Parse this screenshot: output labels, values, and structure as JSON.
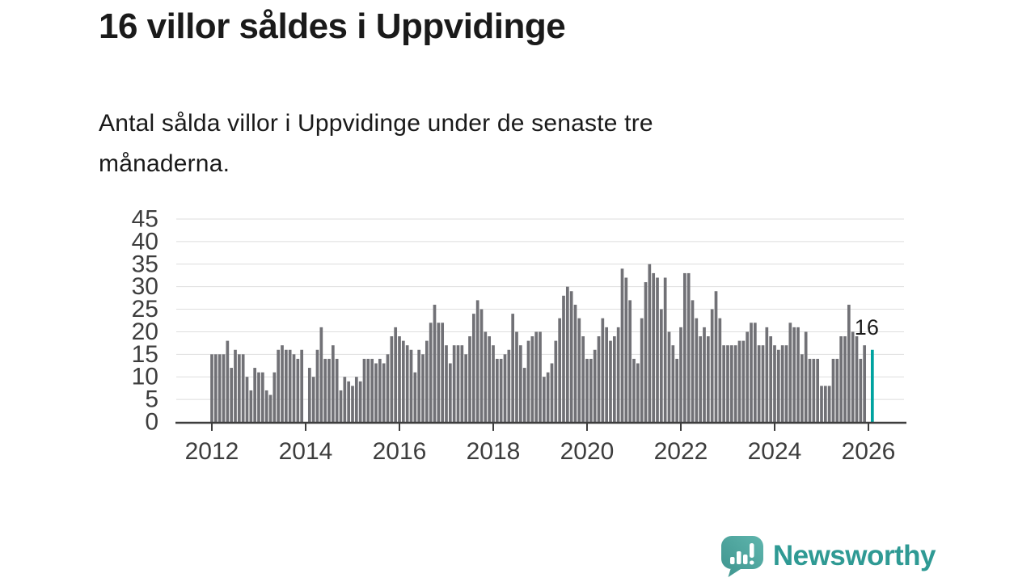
{
  "header": {
    "title": "16 villor såldes i Uppvidinge",
    "subtitle": "Antal sålda villor i Uppvidinge under de senaste tre månaderna.",
    "subtitle_lines": [
      "Antal sålda villor i Uppvidinge under de senaste tre",
      "månaderna."
    ]
  },
  "branding": {
    "name": "Newsworthy",
    "icon": "speech-bubble-bar-chart-exclamation",
    "text_color": "#2f9a94",
    "bubble_color_dark": "#3e948e",
    "bubble_color_light": "#5fb5ad"
  },
  "chart_data": {
    "type": "bar",
    "title": "16 villor såldes i Uppvidinge",
    "subtitle": "Antal sålda villor i Uppvidinge under de senaste tre månaderna.",
    "frequency": "monthly",
    "start_year": 2012,
    "ylim": [
      0,
      45
    ],
    "y_ticks": [
      0,
      5,
      10,
      15,
      20,
      25,
      30,
      35,
      40,
      45
    ],
    "grid": true,
    "legend": "none",
    "x_ticks": [
      {
        "label": "2012",
        "index": 0
      },
      {
        "label": "2014",
        "index": 24
      },
      {
        "label": "2016",
        "index": 48
      },
      {
        "label": "2018",
        "index": 72
      },
      {
        "label": "2020",
        "index": 96
      },
      {
        "label": "2022",
        "index": 120
      },
      {
        "label": "2024",
        "index": 144
      },
      {
        "label": "2026",
        "index": 168
      }
    ],
    "values": [
      15,
      15,
      15,
      15,
      18,
      12,
      16,
      15,
      15,
      10,
      7,
      12,
      11,
      11,
      7,
      6,
      11,
      16,
      17,
      16,
      16,
      15,
      14,
      16,
      null,
      12,
      10,
      16,
      21,
      14,
      14,
      17,
      14,
      7,
      10,
      9,
      8,
      10,
      9,
      14,
      14,
      14,
      13,
      14,
      13,
      15,
      19,
      21,
      19,
      18,
      17,
      16,
      11,
      16,
      15,
      18,
      22,
      26,
      22,
      22,
      17,
      13,
      17,
      17,
      17,
      15,
      19,
      24,
      27,
      25,
      20,
      19,
      17,
      14,
      14,
      15,
      16,
      24,
      20,
      17,
      12,
      18,
      19,
      20,
      20,
      10,
      11,
      13,
      18,
      23,
      28,
      30,
      29,
      26,
      23,
      19,
      14,
      14,
      16,
      19,
      23,
      21,
      18,
      19,
      21,
      34,
      32,
      27,
      14,
      13,
      23,
      31,
      35,
      33,
      32,
      25,
      32,
      20,
      17,
      14,
      21,
      33,
      33,
      27,
      23,
      19,
      21,
      19,
      25,
      29,
      23,
      17,
      17,
      17,
      17,
      18,
      18,
      20,
      22,
      22,
      17,
      17,
      21,
      19,
      17,
      16,
      17,
      17,
      22,
      21,
      21,
      15,
      20,
      14,
      14,
      14,
      8,
      8,
      8,
      14,
      14,
      19,
      19,
      26,
      20,
      19,
      14,
      17,
      null,
      16
    ],
    "highlight_index": 169,
    "highlight_value": 16,
    "highlight_label": "16",
    "colors": {
      "bar": "#717176",
      "highlight": "#00a3a0",
      "axis": "#3d3d3d",
      "grid": "#dedede",
      "tick_text": "#3d3d3d",
      "annotation_text": "#1a1a1a"
    }
  }
}
